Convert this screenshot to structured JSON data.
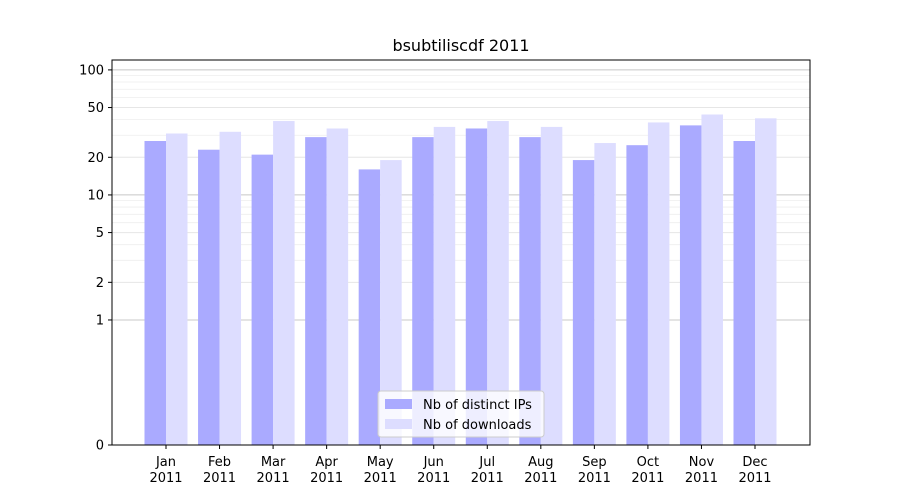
{
  "chart_data": {
    "type": "bar",
    "title": "bsubtiliscdf 2011",
    "xlabel": "",
    "ylabel": "",
    "y_scale": "symlog",
    "ylim": [
      0,
      120
    ],
    "yticks": [
      0,
      1,
      2,
      5,
      10,
      20,
      50,
      100
    ],
    "ytick_labels": [
      "0",
      "1",
      "2",
      "5",
      "10",
      "20",
      "50",
      "100"
    ],
    "grid": true,
    "legend_position": "bottom-center",
    "categories": [
      [
        "Jan",
        "2011"
      ],
      [
        "Feb",
        "2011"
      ],
      [
        "Mar",
        "2011"
      ],
      [
        "Apr",
        "2011"
      ],
      [
        "May",
        "2011"
      ],
      [
        "Jun",
        "2011"
      ],
      [
        "Jul",
        "2011"
      ],
      [
        "Aug",
        "2011"
      ],
      [
        "Sep",
        "2011"
      ],
      [
        "Oct",
        "2011"
      ],
      [
        "Nov",
        "2011"
      ],
      [
        "Dec",
        "2011"
      ]
    ],
    "series": [
      {
        "name": "Nb of distinct IPs",
        "color": "#aaaaff",
        "values": [
          27,
          23,
          21,
          29,
          16,
          29,
          34,
          29,
          19,
          25,
          36,
          27
        ]
      },
      {
        "name": "Nb of downloads",
        "color": "#ddddff",
        "values": [
          31,
          32,
          39,
          34,
          19,
          35,
          39,
          35,
          26,
          38,
          44,
          41
        ]
      }
    ]
  }
}
